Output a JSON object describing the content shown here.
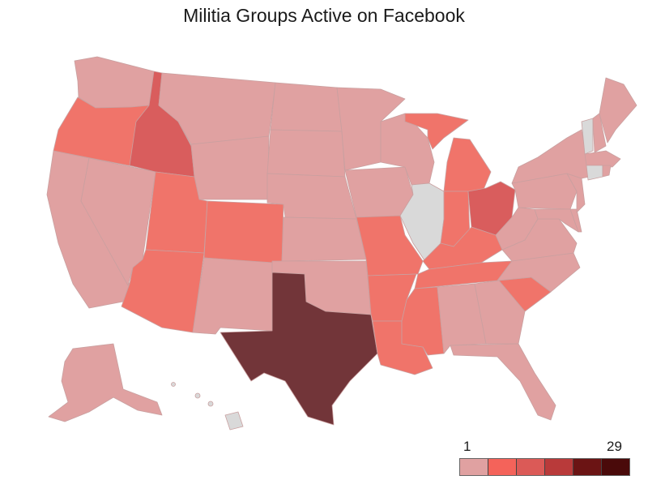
{
  "title": "Militia Groups Active on Facebook",
  "legend": {
    "min_label": "1",
    "max_label": "29",
    "colors": [
      "#e0a1a1",
      "#f4635a",
      "#db5a57",
      "#b93a3a",
      "#6b1414",
      "#4a0a0a"
    ]
  },
  "colors": {
    "no_data": "#d9d9d9",
    "level1": "#e0a1a1",
    "level2": "#f0746a",
    "level3": "#d95d5d",
    "level4": "#c04646",
    "level6": "#723539",
    "border": "#c9a0a0"
  },
  "states": {
    "WA": "level1",
    "OR": "level2",
    "CA": "level1",
    "NV": "level1",
    "ID": "level3",
    "MT": "level1",
    "WY": "level1",
    "UT": "level2",
    "CO": "level2",
    "AZ": "level2",
    "NM": "level1",
    "ND": "level1",
    "SD": "level1",
    "NE": "level1",
    "KS": "level1",
    "OK": "level1",
    "TX": "level6",
    "MN": "level1",
    "IA": "level1",
    "MO": "level2",
    "AR": "level2",
    "LA": "level2",
    "WI": "level1",
    "IL": "no_data",
    "MI": "level2",
    "IN": "level2",
    "OH": "level3",
    "KY": "level2",
    "TN": "level2",
    "MS": "level2",
    "AL": "level1",
    "GA": "level1",
    "FL": "level1",
    "SC": "level2",
    "NC": "level1",
    "VA": "level1",
    "WV": "level1",
    "PA": "level1",
    "NY": "level1",
    "VT": "no_data",
    "NH": "level1",
    "ME": "level1",
    "MA": "level1",
    "CT": "no_data",
    "RI": "level1",
    "NJ": "level1",
    "DE": "level1",
    "MD": "level1",
    "AK": "level1",
    "HI": "no_data"
  }
}
